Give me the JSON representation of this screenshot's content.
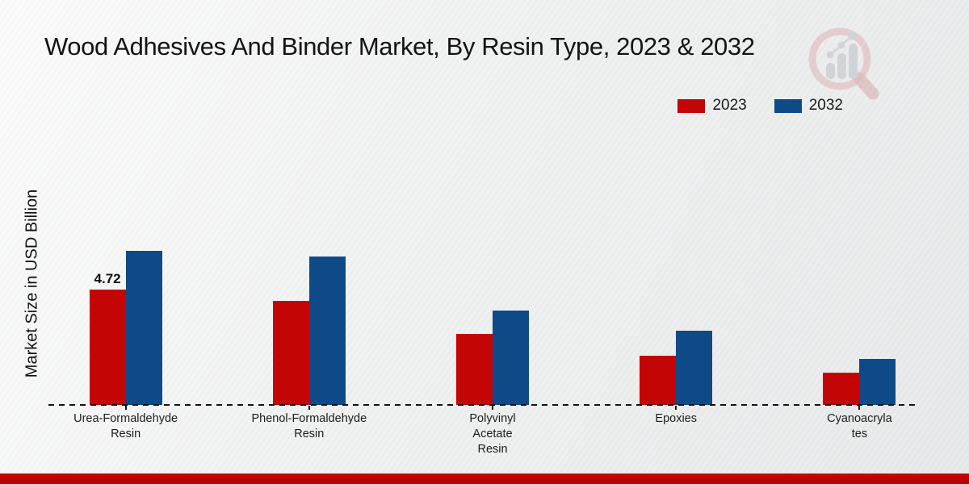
{
  "title": "Wood Adhesives And Binder Market, By Resin Type, 2023 & 2032",
  "ylabel": "Market Size in USD Billion",
  "colors": {
    "series_2023": "#c40505",
    "series_2032": "#0d4a87",
    "footer_bar": "#b90404",
    "axis": "#141414",
    "background": "#eceded"
  },
  "legend": {
    "items": [
      {
        "label": "2023",
        "color": "#c40505"
      },
      {
        "label": "2032",
        "color": "#0d4a87"
      }
    ]
  },
  "watermark": {
    "icon": "magnifier-bar-chart-logo"
  },
  "chart_data": {
    "type": "bar",
    "title": "Wood Adhesives And Binder Market, By Resin Type, 2023 & 2032",
    "xlabel": "",
    "ylabel": "Market Size in USD Billion",
    "categories": [
      "Urea-Formaldehyde Resin",
      "Phenol-Formaldehyde Resin",
      "Polyvinyl Acetate Resin",
      "Epoxies",
      "Cyanoacrylates"
    ],
    "category_display": [
      "Urea-Formaldehyde\nResin",
      "Phenol-Formaldehyde\nResin",
      "Polyvinyl\nAcetate\nResin",
      "Epoxies",
      "Cyanoacryla\ntes"
    ],
    "series": [
      {
        "name": "2023",
        "color": "#c40505",
        "values": [
          4.72,
          4.26,
          2.9,
          2.0,
          1.32
        ]
      },
      {
        "name": "2032",
        "color": "#0d4a87",
        "values": [
          6.3,
          6.07,
          3.86,
          3.04,
          1.88
        ]
      }
    ],
    "bar_value_labels": [
      {
        "series": "2023",
        "category": "Urea-Formaldehyde Resin",
        "text": "4.72"
      }
    ],
    "ylim": [
      0,
      6.6
    ],
    "grid": false,
    "x_axis_style": "dashed",
    "y_axis_ticks_visible": false,
    "legend_position": "top-right"
  }
}
